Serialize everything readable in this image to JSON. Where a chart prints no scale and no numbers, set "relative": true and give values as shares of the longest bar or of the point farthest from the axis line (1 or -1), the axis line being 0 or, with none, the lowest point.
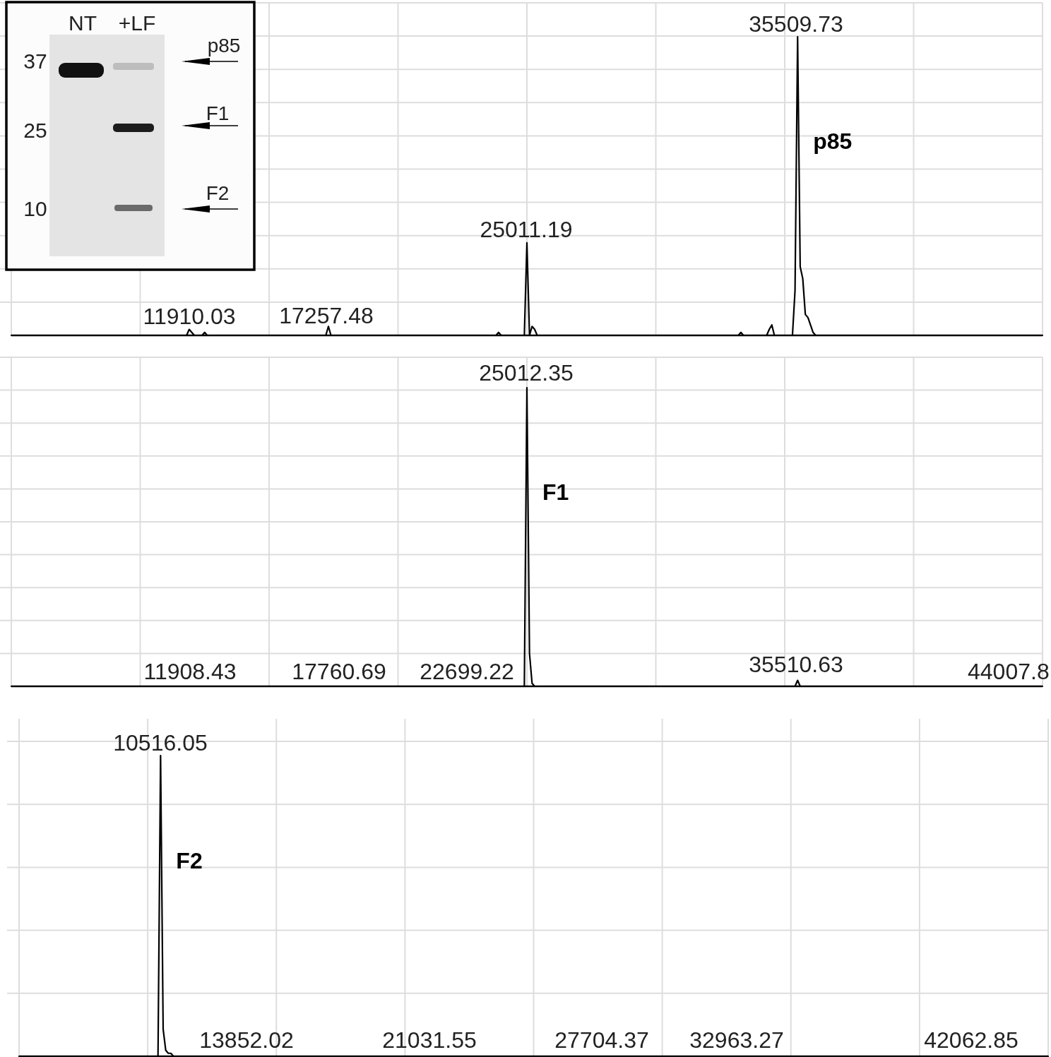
{
  "chart_data": [
    {
      "type": "line",
      "relative": true,
      "grid": true,
      "categories": [
        null,
        null,
        null,
        null,
        null,
        null,
        null,
        null,
        null,
        null,
        null,
        null,
        null,
        null,
        null,
        null,
        null,
        null,
        null,
        null,
        null,
        null,
        null,
        null,
        null,
        null,
        null,
        null,
        null,
        null,
        null,
        null,
        null,
        null,
        null,
        null,
        null,
        null,
        null,
        null,
        null,
        null,
        null,
        null,
        null,
        null,
        null,
        null,
        null,
        null,
        null,
        null,
        null,
        null,
        null,
        null,
        null,
        null,
        null,
        null,
        null,
        null,
        null,
        null,
        null,
        null,
        null,
        null,
        null,
        null,
        null,
        null,
        null,
        null,
        null,
        null,
        null,
        null,
        null,
        null,
        null,
        null,
        null,
        null,
        null,
        null,
        null,
        null,
        null,
        null,
        null,
        null,
        null,
        null,
        null,
        null,
        null,
        null,
        null,
        null,
        null,
        null,
        null,
        null,
        null,
        null,
        null,
        null,
        null,
        null,
        null,
        null,
        null,
        null,
        null,
        null,
        null,
        null,
        null,
        null,
        null,
        null,
        null,
        null,
        null,
        null,
        null,
        null,
        null,
        null,
        null,
        null,
        null,
        null,
        null,
        null,
        null,
        null,
        null,
        null,
        null,
        null,
        null,
        null,
        null,
        null,
        null,
        null,
        null,
        null,
        null,
        null,
        null,
        null,
        null,
        null,
        null,
        null,
        null,
        null,
        null,
        null,
        null,
        null,
        null,
        null,
        null,
        null,
        null,
        null,
        null,
        null,
        null,
        null,
        null,
        null,
        null,
        null,
        null,
        null,
        null,
        null,
        null,
        null,
        null,
        null,
        null,
        null,
        null,
        null,
        null,
        null,
        null,
        null,
        null,
        null,
        null,
        null,
        null,
        null,
        null,
        null,
        null,
        null,
        null,
        null,
        null,
        null,
        null,
        null,
        null,
        null,
        null,
        null,
        null,
        null,
        null,
        null,
        null,
        null,
        null,
        null,
        null,
        null,
        null,
        null,
        null,
        null,
        null,
        null,
        null,
        null,
        null,
        null,
        null,
        null,
        null,
        null,
        null,
        null,
        null,
        null,
        null,
        null,
        null,
        null,
        null,
        null,
        null,
        null,
        null,
        null,
        null,
        null,
        null,
        null,
        null,
        null,
        null,
        null,
        null,
        null,
        null,
        null,
        null,
        null,
        null,
        null,
        null,
        null,
        null,
        null,
        null,
        null,
        null,
        null,
        null,
        null,
        null,
        null,
        null,
        null,
        null,
        null,
        null,
        null,
        null,
        null,
        null,
        null,
        null,
        null,
        null,
        null,
        null,
        null,
        null,
        null,
        null,
        null,
        null,
        null,
        null,
        null,
        null,
        null,
        null,
        null,
        null,
        null,
        null,
        null,
        null,
        null,
        null,
        null,
        null,
        null,
        null,
        null,
        null,
        null,
        null,
        null,
        null,
        null,
        null,
        null,
        null,
        null,
        null,
        null,
        null,
        null,
        null,
        null,
        null,
        null,
        null,
        null,
        null,
        null,
        null,
        null,
        null,
        null,
        null,
        null,
        null,
        null,
        null,
        null,
        null,
        null,
        null,
        null,
        null,
        null,
        null,
        null,
        null,
        null,
        null,
        null,
        null,
        null,
        null,
        null,
        null,
        null,
        null,
        null,
        null,
        null,
        null,
        null,
        null,
        null,
        null,
        null,
        null,
        null,
        null,
        null,
        null,
        null,
        null,
        null,
        null,
        null,
        null,
        null,
        null,
        null,
        null,
        null,
        null,
        null,
        null,
        null,
        null
      ],
      "series": [
        {
          "name": "p85",
          "color": "#000000",
          "values": [
            0,
            0,
            0,
            0,
            0,
            0,
            0,
            0,
            0,
            0,
            0,
            0,
            0,
            0,
            0,
            0,
            0,
            0,
            0,
            0,
            0,
            0,
            0,
            0,
            0,
            0,
            0,
            0,
            0,
            0,
            0,
            0,
            0,
            0,
            0,
            0,
            0,
            0,
            0,
            0,
            0,
            0,
            0,
            0,
            0,
            0,
            0,
            0,
            0,
            0,
            0,
            0,
            0,
            0,
            0,
            0,
            0,
            0,
            0,
            0,
            0,
            0,
            0,
            0,
            0,
            0,
            0,
            0,
            0,
            0.02,
            0.01,
            0,
            0,
            0,
            0,
            0.01,
            0,
            0,
            0,
            0,
            0,
            0,
            0,
            0,
            0,
            0,
            0,
            0,
            0,
            0,
            0,
            0,
            0,
            0,
            0,
            0,
            0,
            0,
            0,
            0,
            0,
            0,
            0,
            0,
            0,
            0,
            0,
            0,
            0,
            0,
            0,
            0,
            0,
            0,
            0,
            0,
            0,
            0,
            0,
            0,
            0,
            0,
            0,
            0.03,
            0,
            0,
            0,
            0,
            0,
            0,
            0,
            0,
            0,
            0,
            0,
            0,
            0,
            0,
            0,
            0,
            0,
            0,
            0,
            0,
            0,
            0,
            0,
            0,
            0,
            0,
            0,
            0,
            0,
            0,
            0,
            0,
            0,
            0,
            0,
            0,
            0,
            0,
            0,
            0,
            0,
            0,
            0,
            0,
            0,
            0,
            0,
            0,
            0,
            0,
            0,
            0,
            0,
            0,
            0,
            0,
            0,
            0,
            0,
            0,
            0,
            0,
            0,
            0,
            0,
            0.01,
            0,
            0,
            0,
            0,
            0,
            0,
            0,
            0,
            0,
            0,
            0.31,
            0,
            0.03,
            0.02,
            0,
            0,
            0,
            0,
            0,
            0,
            0,
            0,
            0,
            0,
            0,
            0,
            0,
            0,
            0,
            0,
            0,
            0,
            0,
            0,
            0,
            0,
            0,
            0,
            0,
            0,
            0,
            0,
            0,
            0,
            0,
            0,
            0,
            0,
            0,
            0,
            0,
            0,
            0,
            0,
            0,
            0,
            0,
            0,
            0,
            0,
            0,
            0,
            0,
            0,
            0,
            0,
            0,
            0,
            0,
            0,
            0,
            0,
            0,
            0,
            0,
            0,
            0,
            0,
            0,
            0,
            0,
            0,
            0,
            0,
            0,
            0,
            0,
            0,
            0,
            0,
            0,
            0,
            0,
            0.01,
            0,
            0,
            0,
            0,
            0,
            0,
            0,
            0,
            0,
            0,
            0.02,
            0.035,
            0,
            0,
            0,
            0,
            0,
            0,
            0,
            0,
            0.15,
            1,
            0.23,
            0.19,
            0.07,
            0.06,
            0.035,
            0.01,
            0,
            0,
            0,
            0,
            0,
            0,
            0,
            0,
            0,
            0,
            0,
            0,
            0,
            0,
            0,
            0,
            0,
            0,
            0,
            0,
            0,
            0,
            0,
            0,
            0,
            0,
            0,
            0,
            0,
            0,
            0,
            0,
            0,
            0,
            0,
            0,
            0,
            0,
            0,
            0,
            0,
            0,
            0,
            0,
            0,
            0,
            0,
            0,
            0,
            0,
            0,
            0,
            0,
            0,
            0,
            0,
            0,
            0,
            0,
            0,
            0,
            0,
            0,
            0,
            0,
            0,
            0,
            0,
            0,
            0,
            0,
            0,
            0,
            0,
            0,
            0,
            0,
            0,
            0,
            0,
            0,
            0,
            0,
            0,
            0,
            0,
            0,
            0,
            0
          ]
        }
      ],
      "annotations": [
        "11910.03",
        "17257.48",
        "25011.19",
        "35509.73",
        "NT",
        "+LF",
        "37",
        "25",
        "10",
        "p85",
        "F1",
        "F2"
      ]
    },
    {
      "type": "line",
      "relative": true,
      "grid": true,
      "categories": [
        null,
        null,
        null,
        null,
        null,
        null,
        null,
        null,
        null,
        null,
        null,
        null,
        null,
        null,
        null,
        null,
        null,
        null,
        null,
        null,
        null,
        null,
        null,
        null,
        null,
        null,
        null,
        null,
        null,
        null,
        null,
        null,
        null,
        null,
        null,
        null,
        null,
        null,
        null,
        null,
        null,
        null,
        null,
        null,
        null,
        null,
        null,
        null,
        null,
        null,
        null,
        null,
        null,
        null,
        null,
        null,
        null,
        null,
        null,
        null,
        null,
        null,
        null,
        null,
        null,
        null,
        null,
        null,
        null,
        null,
        null,
        null,
        null,
        null,
        null,
        null,
        null,
        null,
        null,
        null,
        null,
        null,
        null,
        null,
        null,
        null,
        null,
        null,
        null,
        null,
        null,
        null,
        null,
        null,
        null,
        null,
        null,
        null,
        null,
        null,
        null,
        null,
        null,
        null,
        null,
        null,
        null,
        null,
        null,
        null,
        null,
        null,
        null,
        null,
        null,
        null,
        null,
        null,
        null,
        null,
        null,
        null,
        null,
        null,
        null,
        null,
        null,
        null,
        null,
        null,
        null,
        null,
        null,
        null,
        null,
        null,
        null,
        null,
        null,
        null,
        null,
        null,
        null,
        null,
        null,
        null,
        null,
        null,
        null,
        null,
        null,
        null,
        null,
        null,
        null,
        null,
        null,
        null,
        null,
        null,
        null,
        null,
        null,
        null,
        null,
        null,
        null,
        null,
        null,
        null,
        null,
        null,
        null,
        null,
        null,
        null,
        null,
        null,
        null,
        null,
        null,
        null,
        null,
        null,
        null,
        null,
        null,
        null,
        null,
        null,
        null,
        null,
        null,
        null,
        null,
        null,
        null,
        null,
        null,
        null,
        null,
        null,
        null,
        null,
        null,
        null,
        null,
        null,
        null,
        null,
        null,
        null,
        null,
        null,
        null,
        null,
        null,
        null,
        null,
        null,
        null,
        null,
        null,
        null,
        null,
        null,
        null,
        null,
        null,
        null,
        null,
        null,
        null,
        null,
        null,
        null,
        null,
        null,
        null,
        null,
        null,
        null,
        null,
        null,
        null,
        null,
        null,
        null,
        null,
        null,
        null,
        null,
        null,
        null,
        null,
        null,
        null,
        null,
        null,
        null,
        null,
        null,
        null,
        null,
        null,
        null,
        null,
        null,
        null,
        null,
        null,
        null,
        null,
        null,
        null,
        null,
        null,
        null,
        null,
        null,
        null,
        null,
        null,
        null,
        null,
        null,
        null,
        null,
        null,
        null,
        null,
        null,
        null,
        null,
        null,
        null,
        null,
        null,
        null,
        null,
        null,
        null,
        null,
        null,
        null,
        null,
        null,
        null,
        null,
        null,
        null,
        null,
        null,
        null,
        null,
        null,
        null,
        null,
        null,
        null,
        null,
        null,
        null,
        null,
        null,
        null,
        null,
        null,
        null,
        null,
        null,
        null,
        null,
        null,
        null,
        null,
        null,
        null,
        null,
        null,
        null,
        null,
        null,
        null,
        null,
        null,
        null,
        null,
        null,
        null,
        null,
        null,
        null,
        null,
        null,
        null,
        null,
        null,
        null,
        null,
        null,
        null,
        null,
        null,
        null,
        null,
        null,
        null,
        null,
        null,
        null,
        null,
        null,
        null,
        null,
        null,
        null,
        null,
        null,
        null,
        null,
        null,
        null,
        null,
        null,
        null,
        null,
        null,
        null,
        null,
        null,
        null,
        null,
        null,
        null,
        null,
        null,
        null,
        null,
        null,
        null
      ],
      "series": [
        {
          "name": "F1",
          "color": "#000000",
          "values": [
            0,
            0,
            0,
            0,
            0,
            0,
            0,
            0,
            0,
            0,
            0,
            0,
            0,
            0,
            0,
            0,
            0,
            0,
            0,
            0,
            0,
            0,
            0,
            0,
            0,
            0,
            0,
            0,
            0,
            0,
            0,
            0,
            0,
            0,
            0,
            0,
            0,
            0,
            0,
            0,
            0,
            0,
            0,
            0,
            0,
            0,
            0,
            0,
            0,
            0,
            0,
            0,
            0,
            0,
            0,
            0,
            0,
            0,
            0,
            0,
            0,
            0,
            0,
            0,
            0,
            0,
            0,
            0,
            0,
            0,
            0,
            0,
            0,
            0,
            0,
            0,
            0,
            0,
            0,
            0,
            0,
            0,
            0,
            0,
            0,
            0,
            0,
            0,
            0,
            0,
            0,
            0,
            0,
            0,
            0,
            0,
            0,
            0,
            0,
            0,
            0,
            0,
            0,
            0,
            0,
            0,
            0,
            0,
            0,
            0,
            0,
            0,
            0,
            0,
            0,
            0,
            0,
            0,
            0,
            0,
            0,
            0,
            0,
            0,
            0,
            0,
            0,
            0,
            0,
            0,
            0,
            0,
            0,
            0,
            0,
            0,
            0,
            0,
            0,
            0,
            0,
            0,
            0,
            0,
            0,
            0,
            0,
            0,
            0,
            0,
            0,
            0,
            0,
            0,
            0,
            0,
            0,
            0,
            0,
            0,
            0,
            0,
            0,
            0,
            0,
            0,
            0,
            0,
            0,
            0,
            0,
            0,
            0,
            0,
            0,
            0,
            0,
            0,
            0,
            0,
            0,
            0,
            0,
            0,
            0,
            0,
            0,
            0,
            0,
            0,
            0,
            0,
            0,
            0,
            0,
            0,
            0,
            0,
            0,
            0,
            1,
            0.11,
            0.01,
            0,
            0,
            0,
            0,
            0,
            0,
            0,
            0,
            0,
            0,
            0,
            0,
            0,
            0,
            0,
            0,
            0,
            0,
            0,
            0,
            0,
            0,
            0,
            0,
            0,
            0,
            0,
            0,
            0,
            0,
            0,
            0,
            0,
            0,
            0,
            0,
            0,
            0,
            0,
            0,
            0,
            0,
            0,
            0,
            0,
            0,
            0,
            0,
            0,
            0,
            0,
            0,
            0,
            0,
            0,
            0,
            0,
            0,
            0,
            0,
            0,
            0,
            0,
            0,
            0,
            0,
            0,
            0,
            0,
            0,
            0,
            0,
            0,
            0,
            0,
            0,
            0,
            0,
            0,
            0,
            0,
            0,
            0,
            0,
            0,
            0,
            0,
            0,
            0,
            0,
            0,
            0,
            0,
            0,
            0,
            0,
            0,
            0,
            0,
            0,
            0,
            0,
            0.02,
            0,
            0,
            0,
            0,
            0,
            0,
            0,
            0,
            0,
            0,
            0,
            0,
            0,
            0,
            0,
            0,
            0,
            0,
            0,
            0,
            0,
            0,
            0,
            0,
            0,
            0,
            0,
            0,
            0,
            0,
            0,
            0,
            0,
            0,
            0,
            0,
            0,
            0,
            0,
            0,
            0,
            0,
            0,
            0,
            0,
            0,
            0,
            0,
            0,
            0,
            0,
            0,
            0,
            0,
            0,
            0,
            0,
            0,
            0,
            0,
            0,
            0,
            0,
            0,
            0,
            0,
            0,
            0,
            0,
            0,
            0,
            0,
            0,
            0,
            0,
            0,
            0,
            0,
            0,
            0,
            0,
            0,
            0,
            0,
            0,
            0,
            0,
            0,
            0,
            0,
            0,
            0,
            0,
            0,
            0
          ]
        }
      ],
      "annotations": [
        "11908.43",
        "17760.69",
        "22699.22",
        "25012.35",
        "35510.63",
        "44007.8"
      ]
    },
    {
      "type": "line",
      "relative": true,
      "grid": true,
      "categories": [
        null,
        null,
        null,
        null,
        null,
        null,
        null,
        null,
        null,
        null,
        null,
        null,
        null,
        null,
        null,
        null,
        null,
        null,
        null,
        null,
        null,
        null,
        null,
        null,
        null,
        null,
        null,
        null,
        null,
        null,
        null,
        null,
        null,
        null,
        null,
        null,
        null,
        null,
        null,
        null,
        null,
        null,
        null,
        null,
        null,
        null,
        null,
        null,
        null,
        null,
        null,
        null,
        null,
        null,
        null,
        null,
        null,
        null,
        null,
        null,
        null,
        null,
        null,
        null,
        null,
        null,
        null,
        null,
        null,
        null,
        null,
        null,
        null,
        null,
        null,
        null,
        null,
        null,
        null,
        null,
        null,
        null,
        null,
        null,
        null,
        null,
        null,
        null,
        null,
        null,
        null,
        null,
        null,
        null,
        null,
        null,
        null,
        null,
        null,
        null,
        null,
        null,
        null,
        null,
        null,
        null,
        null,
        null,
        null,
        null,
        null,
        null,
        null,
        null,
        null,
        null,
        null,
        null,
        null,
        null,
        null,
        null,
        null,
        null,
        null,
        null,
        null,
        null,
        null,
        null,
        null,
        null,
        null,
        null,
        null,
        null,
        null,
        null,
        null,
        null,
        null,
        null,
        null,
        null,
        null,
        null,
        null,
        null,
        null,
        null,
        null,
        null,
        null,
        null,
        null,
        null,
        null,
        null,
        null,
        null,
        null,
        null,
        null,
        null,
        null,
        null,
        null,
        null,
        null,
        null,
        null,
        null,
        null,
        null,
        null,
        null,
        null,
        null,
        null,
        null,
        null,
        null,
        null,
        null,
        null,
        null,
        null,
        null,
        null,
        null,
        null,
        null,
        null,
        null,
        null,
        null,
        null,
        null,
        null,
        null,
        null,
        null,
        null,
        null,
        null,
        null,
        null,
        null,
        null,
        null,
        null,
        null,
        null,
        null,
        null,
        null,
        null,
        null,
        null,
        null,
        null,
        null,
        null,
        null,
        null,
        null,
        null,
        null,
        null,
        null,
        null,
        null,
        null,
        null,
        null,
        null,
        null,
        null,
        null,
        null,
        null,
        null,
        null,
        null,
        null,
        null,
        null,
        null,
        null,
        null,
        null,
        null,
        null,
        null,
        null,
        null,
        null,
        null,
        null,
        null,
        null,
        null,
        null,
        null,
        null,
        null,
        null,
        null,
        null,
        null,
        null,
        null,
        null,
        null,
        null,
        null,
        null,
        null,
        null,
        null,
        null,
        null,
        null,
        null,
        null,
        null,
        null,
        null,
        null,
        null,
        null,
        null,
        null,
        null,
        null,
        null,
        null,
        null,
        null,
        null,
        null,
        null,
        null,
        null,
        null,
        null,
        null,
        null,
        null,
        null,
        null,
        null,
        null,
        null,
        null,
        null,
        null,
        null,
        null,
        null,
        null,
        null,
        null,
        null,
        null,
        null,
        null,
        null,
        null,
        null,
        null,
        null,
        null,
        null,
        null,
        null,
        null,
        null,
        null,
        null,
        null,
        null,
        null,
        null,
        null,
        null,
        null,
        null,
        null,
        null,
        null,
        null,
        null,
        null,
        null,
        null,
        null,
        null,
        null,
        null,
        null,
        null,
        null,
        null,
        null,
        null,
        null,
        null,
        null,
        null,
        null,
        null,
        null,
        null,
        null,
        null,
        null,
        null,
        null,
        null,
        null,
        null,
        null,
        null,
        null,
        null,
        null,
        null,
        null,
        null,
        null,
        null,
        null,
        null,
        null,
        null,
        null,
        null,
        null,
        null,
        null
      ],
      "series": [
        {
          "name": "F2",
          "color": "#000000",
          "values": [
            0,
            0,
            0,
            0,
            0,
            0,
            0,
            0,
            0,
            0,
            0,
            0,
            0,
            0,
            0,
            0,
            0,
            0,
            0,
            0,
            0,
            0,
            0,
            0,
            0,
            0,
            0,
            0,
            0,
            0,
            0,
            0,
            0,
            0,
            0,
            0,
            0,
            0,
            0,
            0,
            0,
            0,
            0,
            0,
            0,
            0,
            0,
            0,
            0,
            0,
            0,
            0,
            0,
            0,
            0,
            1,
            0.09,
            0.02,
            0.01,
            0.01,
            0,
            0,
            0,
            0,
            0,
            0,
            0,
            0,
            0,
            0,
            0,
            0,
            0,
            0,
            0,
            0,
            0,
            0,
            0,
            0,
            0,
            0,
            0,
            0,
            0,
            0,
            0,
            0,
            0,
            0,
            0,
            0,
            0,
            0,
            0,
            0,
            0,
            0,
            0,
            0,
            0,
            0,
            0,
            0,
            0,
            0,
            0,
            0,
            0,
            0,
            0,
            0,
            0,
            0,
            0,
            0,
            0,
            0,
            0,
            0,
            0,
            0,
            0,
            0,
            0,
            0,
            0,
            0,
            0,
            0,
            0,
            0,
            0,
            0,
            0,
            0,
            0,
            0,
            0,
            0,
            0,
            0,
            0,
            0,
            0,
            0,
            0,
            0,
            0,
            0,
            0,
            0,
            0,
            0,
            0,
            0,
            0,
            0,
            0,
            0,
            0,
            0,
            0,
            0,
            0,
            0,
            0,
            0,
            0,
            0,
            0,
            0,
            0,
            0,
            0,
            0,
            0,
            0,
            0,
            0,
            0,
            0,
            0,
            0,
            0,
            0,
            0,
            0,
            0,
            0,
            0,
            0,
            0,
            0,
            0,
            0,
            0,
            0,
            0,
            0,
            0,
            0,
            0,
            0,
            0,
            0,
            0,
            0,
            0,
            0,
            0,
            0,
            0,
            0,
            0,
            0,
            0,
            0,
            0,
            0,
            0,
            0,
            0,
            0,
            0,
            0,
            0,
            0,
            0,
            0,
            0,
            0,
            0,
            0,
            0,
            0,
            0,
            0,
            0,
            0,
            0,
            0,
            0,
            0,
            0,
            0,
            0,
            0,
            0,
            0,
            0,
            0,
            0,
            0,
            0,
            0,
            0,
            0,
            0,
            0,
            0,
            0,
            0,
            0,
            0,
            0,
            0,
            0,
            0,
            0,
            0,
            0,
            0,
            0,
            0,
            0,
            0,
            0,
            0,
            0,
            0,
            0,
            0,
            0,
            0,
            0,
            0,
            0,
            0,
            0,
            0,
            0,
            0,
            0,
            0,
            0,
            0,
            0,
            0,
            0,
            0,
            0,
            0,
            0,
            0,
            0,
            0,
            0,
            0,
            0,
            0,
            0,
            0,
            0,
            0,
            0,
            0,
            0,
            0,
            0,
            0,
            0,
            0,
            0,
            0,
            0,
            0,
            0,
            0,
            0,
            0,
            0,
            0,
            0,
            0,
            0,
            0,
            0,
            0,
            0,
            0,
            0,
            0,
            0,
            0,
            0,
            0,
            0,
            0,
            0,
            0,
            0,
            0,
            0,
            0,
            0,
            0,
            0,
            0,
            0,
            0,
            0,
            0,
            0,
            0,
            0,
            0,
            0,
            0,
            0,
            0,
            0,
            0,
            0,
            0,
            0,
            0,
            0,
            0,
            0,
            0,
            0,
            0,
            0,
            0,
            0,
            0,
            0,
            0,
            0,
            0,
            0,
            0,
            0,
            0,
            0,
            0,
            0,
            0,
            0,
            0
          ]
        }
      ],
      "annotations": [
        "10516.05",
        "13852.02",
        "21031.55",
        "27704.37",
        "32963.27",
        "42062.85"
      ]
    }
  ]
}
